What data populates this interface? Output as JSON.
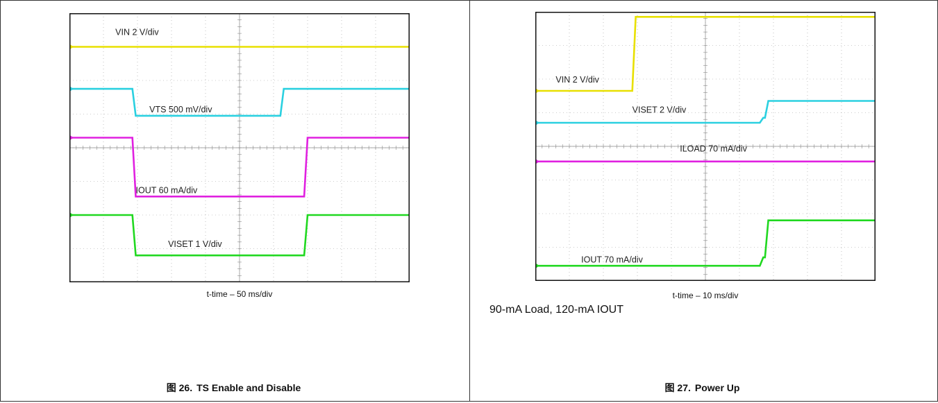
{
  "chart_data": [
    {
      "type": "line",
      "figure_number": "图 26.",
      "caption": "TS Enable and Disable",
      "xlabel": "t-time – 50 ms/div",
      "condition": "",
      "xlim": [
        0,
        10
      ],
      "ylim": [
        0,
        8
      ],
      "grid": true,
      "series": [
        {
          "name": "VIN",
          "label": "VIN 2 V/div",
          "color": "#e8e000",
          "label_at": [
            1.35,
            7.35
          ],
          "x": [
            0,
            10
          ],
          "y": [
            7.0,
            7.0
          ]
        },
        {
          "name": "VTS",
          "label": "VTS  500 mV/div",
          "color": "#2ad0e0",
          "label_at": [
            2.35,
            5.05
          ],
          "x": [
            0,
            1.85,
            1.95,
            6.2,
            6.3,
            10
          ],
          "y": [
            5.75,
            5.75,
            4.95,
            4.95,
            5.75,
            5.75
          ]
        },
        {
          "name": "IOUT",
          "label": "IOUT 60 mA/div",
          "color": "#e020e0",
          "label_at": [
            1.95,
            2.65
          ],
          "x": [
            0,
            1.85,
            1.95,
            6.9,
            7.0,
            10
          ],
          "y": [
            4.3,
            4.3,
            2.55,
            2.55,
            4.3,
            4.3
          ]
        },
        {
          "name": "VISET",
          "label": "VISET 1 V/div",
          "color": "#20d820",
          "label_at": [
            2.9,
            1.05
          ],
          "x": [
            0,
            1.85,
            1.95,
            6.9,
            7.0,
            10
          ],
          "y": [
            2.0,
            2.0,
            0.8,
            0.8,
            2.0,
            2.0
          ]
        }
      ]
    },
    {
      "type": "line",
      "figure_number": "图 27.",
      "caption": "Power Up",
      "xlabel": "t-time – 10 ms/div",
      "condition": "90-mA Load, 120-mA IOUT",
      "xlim": [
        0,
        10
      ],
      "ylim": [
        0,
        8
      ],
      "grid": true,
      "series": [
        {
          "name": "VIN",
          "label": "VIN 2 V/div",
          "color": "#e8e000",
          "label_at": [
            0.6,
            5.9
          ],
          "x": [
            0,
            2.85,
            2.95,
            10
          ],
          "y": [
            5.65,
            5.65,
            7.85,
            7.85
          ]
        },
        {
          "name": "VISET",
          "label": "VISET 2 V/div",
          "color": "#2ad0e0",
          "label_at": [
            2.85,
            5.0
          ],
          "x": [
            0,
            6.6,
            6.7,
            6.75,
            6.85,
            10
          ],
          "y": [
            4.7,
            4.7,
            4.85,
            4.85,
            5.35,
            5.35
          ]
        },
        {
          "name": "ILOAD",
          "label": "ILOAD 70 mA/div",
          "color": "#e020e0",
          "label_at": [
            4.25,
            3.85
          ],
          "x": [
            0,
            10
          ],
          "y": [
            3.55,
            3.55
          ]
        },
        {
          "name": "IOUT",
          "label": "IOUT 70 mA/div",
          "color": "#20d820",
          "label_at": [
            1.35,
            0.55
          ],
          "x": [
            0,
            6.6,
            6.7,
            6.75,
            6.85,
            10
          ],
          "y": [
            0.45,
            0.45,
            0.7,
            0.7,
            1.8,
            1.8
          ]
        }
      ]
    }
  ]
}
